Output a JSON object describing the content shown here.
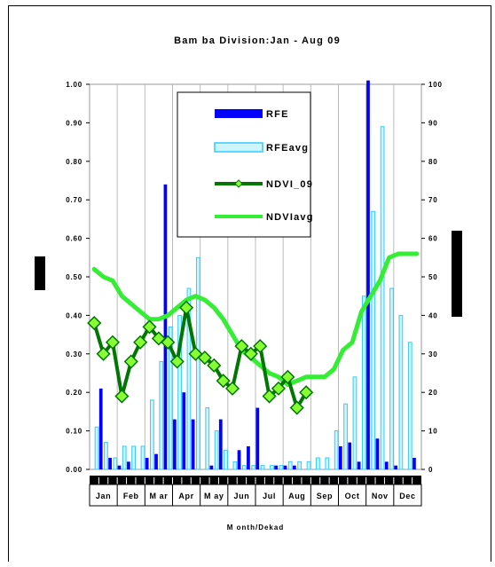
{
  "chart_data": {
    "type": "bar+line",
    "title": "Bam ba Division:Jan - Aug 09",
    "xlabel": "M onth/Dekad",
    "months": [
      "Jan",
      "Feb",
      "M ar",
      "Apr",
      "M ay",
      "Jun",
      "Jul",
      "Aug",
      "Sep",
      "Oct",
      "Nov",
      "Dec"
    ],
    "dekads": 36,
    "y_left": {
      "ylim": [
        0,
        1.0
      ],
      "ticks": [
        "0.00",
        "0.10",
        "0.20",
        "0.30",
        "0.40",
        "0.50",
        "0.60",
        "0.70",
        "0.80",
        "0.90",
        "1.00"
      ]
    },
    "y_right": {
      "ylim": [
        0,
        100
      ],
      "ticks": [
        "0",
        "10",
        "20",
        "30",
        "40",
        "50",
        "60",
        "70",
        "80",
        "90",
        "100"
      ]
    },
    "grid": "vertical month gridlines",
    "legend": {
      "position": "top-center"
    },
    "series": [
      {
        "name": "RFE",
        "kind": "bar",
        "axis": "right",
        "color": "#0000ff",
        "values": [
          0,
          21,
          3,
          1,
          2,
          0,
          3,
          4,
          74,
          13,
          20,
          13,
          0,
          1,
          13,
          0,
          5,
          6,
          16,
          0,
          1,
          1,
          1,
          0,
          0,
          0,
          0,
          6,
          7,
          2,
          101,
          8,
          2,
          1,
          0,
          3
        ]
      },
      {
        "name": "RFEavg",
        "kind": "bar",
        "axis": "right",
        "color": "#33ccff",
        "values": [
          11,
          7,
          3,
          6,
          6,
          6,
          18,
          28,
          37,
          40,
          47,
          55,
          16,
          10,
          5,
          2,
          1,
          1,
          1,
          1,
          1,
          2,
          2,
          2,
          3,
          3,
          10,
          17,
          24,
          45,
          67,
          89,
          47,
          40,
          33,
          0
        ]
      },
      {
        "name": "NDVI_09",
        "kind": "line",
        "axis": "left",
        "color": "#007700",
        "marker": "diamond",
        "values": [
          0.38,
          0.3,
          0.33,
          0.19,
          0.28,
          0.33,
          0.37,
          0.34,
          0.33,
          0.28,
          0.42,
          0.3,
          0.29,
          0.27,
          0.23,
          0.21,
          0.32,
          0.3,
          0.32,
          0.19,
          0.21,
          0.24,
          0.16,
          0.2,
          null,
          null,
          null,
          null,
          null,
          null,
          null,
          null,
          null,
          null,
          null,
          null
        ]
      },
      {
        "name": "NDVIavg",
        "kind": "line",
        "axis": "left",
        "color": "#33ee33",
        "values": [
          0.52,
          0.5,
          0.49,
          0.45,
          0.43,
          0.41,
          0.39,
          0.39,
          0.4,
          0.42,
          0.44,
          0.45,
          0.44,
          0.42,
          0.39,
          0.35,
          0.31,
          0.29,
          0.27,
          0.25,
          0.24,
          0.22,
          0.23,
          0.24,
          0.24,
          0.24,
          0.26,
          0.31,
          0.33,
          0.41,
          0.45,
          0.49,
          0.55,
          0.56,
          0.56,
          0.56
        ]
      }
    ]
  }
}
